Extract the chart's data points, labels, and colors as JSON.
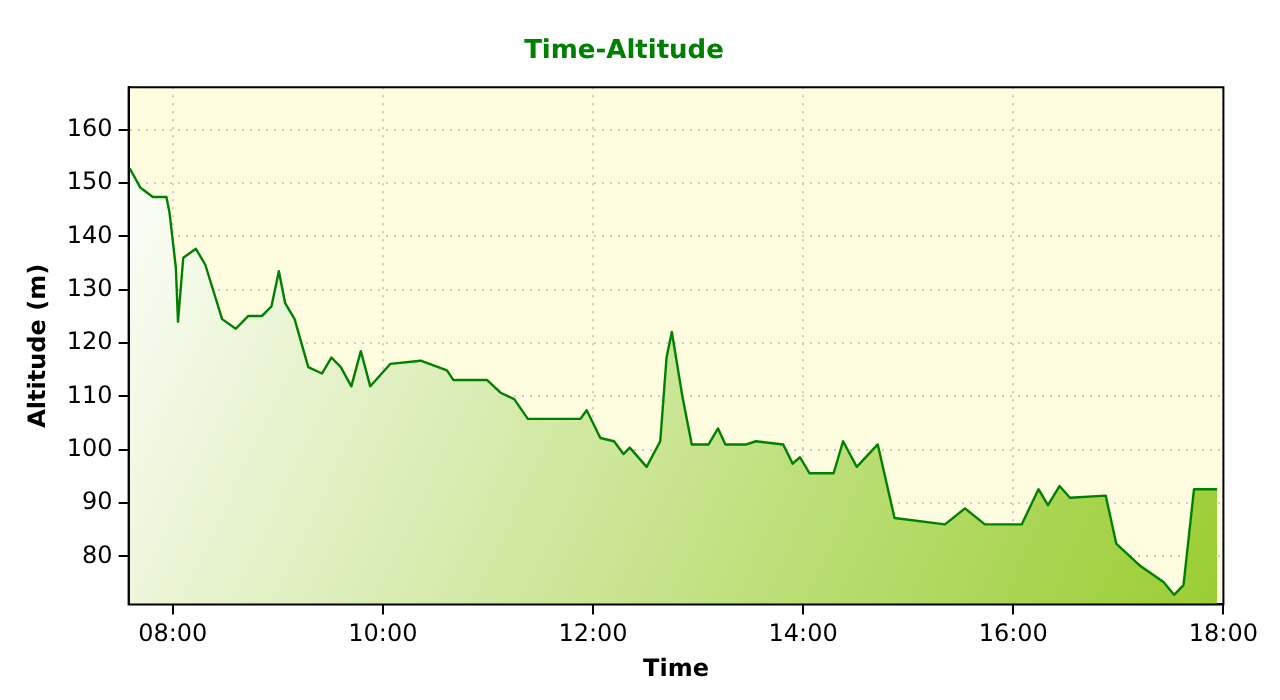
{
  "chart_data": {
    "type": "area",
    "title": "Time-Altitude",
    "xlabel": "Time",
    "ylabel": "Altitude (m)",
    "x": [
      7.59,
      7.69,
      7.81,
      7.94,
      7.97,
      8.03,
      8.05,
      8.1,
      8.22,
      8.31,
      8.47,
      8.6,
      8.72,
      8.85,
      8.94,
      9.01,
      9.07,
      9.16,
      9.29,
      9.42,
      9.51,
      9.6,
      9.7,
      9.79,
      9.88,
      10.07,
      10.36,
      10.61,
      10.67,
      10.99,
      11.12,
      11.25,
      11.38,
      11.88,
      11.94,
      12.07,
      12.2,
      12.29,
      12.35,
      12.51,
      12.64,
      12.7,
      12.75,
      12.85,
      12.94,
      13.1,
      13.19,
      13.26,
      13.46,
      13.55,
      13.81,
      13.9,
      13.97,
      14.06,
      14.29,
      14.38,
      14.51,
      14.71,
      14.87,
      15.35,
      15.54,
      15.73,
      16.08,
      16.24,
      16.33,
      16.44,
      16.54,
      16.88,
      16.98,
      17.21,
      17.43,
      17.53,
      17.62,
      17.72,
      17.94
    ],
    "series": [
      {
        "color": "#008000",
        "values": [
          152.8,
          149.2,
          147.4,
          147.4,
          144.4,
          134.1,
          124,
          136,
          137.7,
          134.7,
          124.5,
          122.7,
          125.1,
          125.1,
          126.9,
          133.5,
          127.5,
          124.5,
          115.5,
          114.3,
          117.3,
          115.5,
          111.9,
          118.5,
          111.9,
          116.1,
          116.7,
          114.9,
          113.1,
          113.1,
          110.7,
          109.5,
          105.8,
          105.8,
          107.4,
          102.2,
          101.6,
          99.2,
          100.4,
          96.8,
          101.6,
          117.3,
          122.1,
          110.1,
          101,
          101,
          104,
          101,
          101,
          101.6,
          101,
          97.4,
          98.6,
          95.6,
          95.6,
          101.6,
          96.8,
          101,
          87.2,
          86,
          89,
          86,
          86,
          92.6,
          89.6,
          93.2,
          91,
          91.4,
          82.4,
          78.2,
          75.2,
          72.8,
          74.6,
          92.6,
          92.6
        ]
      }
    ],
    "xlim": [
      7.58,
      18
    ],
    "xticks": [
      {
        "value": 8,
        "label": "08:00"
      },
      {
        "value": 10,
        "label": "10:00"
      },
      {
        "value": 12,
        "label": "12:00"
      },
      {
        "value": 14,
        "label": "14:00"
      },
      {
        "value": 16,
        "label": "16:00"
      },
      {
        "value": 18,
        "label": "18:00"
      }
    ],
    "ylim": [
      71,
      168
    ],
    "yticks": [
      80,
      90,
      100,
      110,
      120,
      130,
      140,
      150,
      160
    ],
    "grid": true,
    "legend": false
  }
}
